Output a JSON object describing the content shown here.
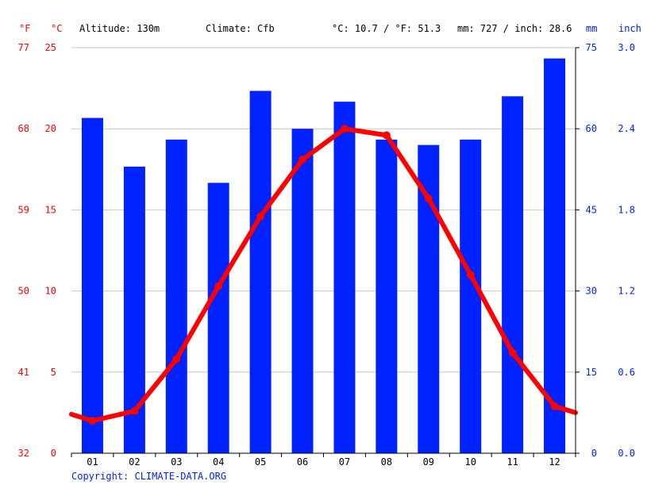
{
  "header": {
    "f_unit": "°F",
    "c_unit": "°C",
    "altitude": "Altitude: 130m",
    "climate": "Climate: Cfb",
    "avg_temp": "°C: 10.7 / °F: 51.3",
    "precip": "mm: 727 / inch: 28.6",
    "mm_unit": "mm",
    "inch_unit": "inch"
  },
  "copyright": "Copyright: CLIMATE-DATA.ORG",
  "colors": {
    "temperature": "#ff0000",
    "precipitation": "#0022ff",
    "grid": "#c8c8c8",
    "axis": "#000000"
  },
  "chart_data": {
    "type": "bar",
    "categories": [
      "01",
      "02",
      "03",
      "04",
      "05",
      "06",
      "07",
      "08",
      "09",
      "10",
      "11",
      "12"
    ],
    "series": [
      {
        "type": "bar",
        "axis": "right",
        "values": [
          62,
          53,
          58,
          50,
          67,
          60,
          65,
          58,
          57,
          58,
          66,
          73
        ]
      },
      {
        "type": "line",
        "axis": "left",
        "values": [
          2.0,
          2.6,
          5.8,
          10.3,
          14.6,
          18.1,
          20.0,
          19.6,
          15.7,
          11.0,
          6.2,
          2.9
        ]
      }
    ],
    "line_extension": {
      "left": 2.4,
      "right": 2.5
    },
    "y_left": {
      "ylim": [
        0,
        25
      ],
      "ticks": [
        "0",
        "5",
        "10",
        "15",
        "20",
        "25"
      ],
      "f_ticks": [
        "32",
        "41",
        "50",
        "59",
        "68",
        "77"
      ]
    },
    "y_right": {
      "ylim": [
        0,
        75
      ],
      "ticks": [
        "0",
        "15",
        "30",
        "45",
        "60",
        "75"
      ],
      "inch_ticks": [
        "0.0",
        "0.6",
        "1.2",
        "1.8",
        "2.4",
        "3.0"
      ]
    },
    "grid": true,
    "legend": "none"
  }
}
